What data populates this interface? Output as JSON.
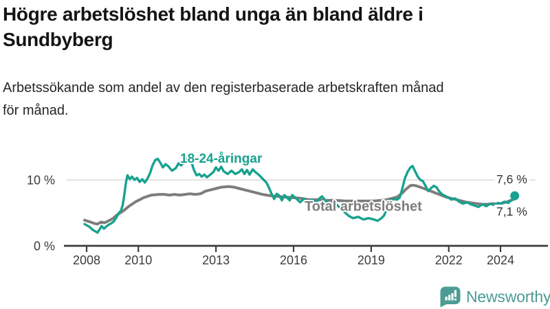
{
  "header": {
    "title_line1": "Högre arbetslöshet bland unga än bland äldre i",
    "title_line2": "Sundbyberg",
    "subtitle_line1": "Arbetssökande som andel av den registerbaserade arbetskraften månad",
    "subtitle_line2": "för månad."
  },
  "chart_data": {
    "type": "line",
    "unit": "percent of registered labour force",
    "x_axis": {
      "ticks": [
        2008,
        2010,
        2013,
        2016,
        2019,
        2022,
        2024
      ],
      "labels": [
        "2008",
        "2010",
        "2013",
        "2016",
        "2019",
        "2022",
        "2024"
      ],
      "range": [
        2007.9,
        2024.7
      ]
    },
    "y_axis": {
      "ticks": [
        {
          "value": 10,
          "label": "10 %"
        },
        {
          "value": 0,
          "label": "0 %"
        }
      ],
      "range": [
        0,
        14
      ],
      "gridline_value": 10
    },
    "series": [
      {
        "id": "young",
        "name": "18-24-åringar",
        "color": "#17a28e",
        "stroke_width": 3.4,
        "points": [
          [
            2007.92,
            3.3
          ],
          [
            2008.1,
            2.9
          ],
          [
            2008.25,
            2.4
          ],
          [
            2008.42,
            2.0
          ],
          [
            2008.5,
            2.5
          ],
          [
            2008.58,
            3.0
          ],
          [
            2008.67,
            2.6
          ],
          [
            2008.75,
            2.9
          ],
          [
            2008.85,
            3.2
          ],
          [
            2008.95,
            3.4
          ],
          [
            2009.05,
            3.7
          ],
          [
            2009.15,
            4.3
          ],
          [
            2009.25,
            5.0
          ],
          [
            2009.33,
            5.3
          ],
          [
            2009.4,
            6.3
          ],
          [
            2009.46,
            7.8
          ],
          [
            2009.52,
            9.6
          ],
          [
            2009.58,
            10.7
          ],
          [
            2009.67,
            10.1
          ],
          [
            2009.75,
            10.5
          ],
          [
            2009.85,
            10.0
          ],
          [
            2009.95,
            10.3
          ],
          [
            2010.05,
            9.7
          ],
          [
            2010.15,
            10.1
          ],
          [
            2010.25,
            9.6
          ],
          [
            2010.35,
            10.2
          ],
          [
            2010.45,
            11.0
          ],
          [
            2010.55,
            12.2
          ],
          [
            2010.65,
            13.0
          ],
          [
            2010.75,
            13.2
          ],
          [
            2010.85,
            12.6
          ],
          [
            2010.95,
            11.9
          ],
          [
            2011.05,
            12.4
          ],
          [
            2011.15,
            12.1
          ],
          [
            2011.3,
            11.4
          ],
          [
            2011.45,
            11.8
          ],
          [
            2011.55,
            12.5
          ],
          [
            2011.65,
            12.2
          ],
          [
            2011.8,
            12.8
          ],
          [
            2011.92,
            13.3
          ],
          [
            2012.05,
            12.7
          ],
          [
            2012.15,
            11.5
          ],
          [
            2012.25,
            10.7
          ],
          [
            2012.35,
            10.9
          ],
          [
            2012.45,
            10.5
          ],
          [
            2012.55,
            10.8
          ],
          [
            2012.65,
            10.4
          ],
          [
            2012.75,
            10.7
          ],
          [
            2012.9,
            11.2
          ],
          [
            2013.0,
            11.9
          ],
          [
            2013.1,
            11.4
          ],
          [
            2013.2,
            12.0
          ],
          [
            2013.3,
            11.3
          ],
          [
            2013.45,
            10.9
          ],
          [
            2013.6,
            11.4
          ],
          [
            2013.75,
            10.9
          ],
          [
            2013.9,
            11.2
          ],
          [
            2014.0,
            11.6
          ],
          [
            2014.1,
            10.9
          ],
          [
            2014.2,
            11.5
          ],
          [
            2014.3,
            10.8
          ],
          [
            2014.42,
            11.6
          ],
          [
            2014.52,
            11.2
          ],
          [
            2014.65,
            10.8
          ],
          [
            2014.8,
            10.2
          ],
          [
            2014.95,
            9.6
          ],
          [
            2015.05,
            8.8
          ],
          [
            2015.15,
            7.9
          ],
          [
            2015.25,
            7.1
          ],
          [
            2015.35,
            7.9
          ],
          [
            2015.45,
            7.6
          ],
          [
            2015.55,
            6.9
          ],
          [
            2015.65,
            7.7
          ],
          [
            2015.75,
            7.3
          ],
          [
            2015.85,
            6.9
          ],
          [
            2015.95,
            7.7
          ],
          [
            2016.1,
            7.2
          ],
          [
            2016.25,
            6.6
          ],
          [
            2016.4,
            7.1
          ],
          [
            2016.55,
            6.6
          ],
          [
            2016.7,
            7.0
          ],
          [
            2016.85,
            6.5
          ],
          [
            2017.0,
            7.2
          ],
          [
            2017.1,
            7.5
          ],
          [
            2017.25,
            6.8
          ],
          [
            2017.4,
            6.3
          ],
          [
            2017.55,
            6.7
          ],
          [
            2017.7,
            6.1
          ],
          [
            2017.85,
            5.6
          ],
          [
            2018.0,
            5.0
          ],
          [
            2018.15,
            4.5
          ],
          [
            2018.3,
            4.2
          ],
          [
            2018.5,
            4.4
          ],
          [
            2018.7,
            4.0
          ],
          [
            2018.9,
            4.2
          ],
          [
            2019.1,
            4.0
          ],
          [
            2019.25,
            3.8
          ],
          [
            2019.4,
            4.2
          ],
          [
            2019.5,
            4.6
          ],
          [
            2019.6,
            5.6
          ],
          [
            2019.7,
            6.4
          ],
          [
            2019.8,
            7.0
          ],
          [
            2019.9,
            7.1
          ],
          [
            2020.0,
            7.0
          ],
          [
            2020.1,
            7.3
          ],
          [
            2020.2,
            8.6
          ],
          [
            2020.3,
            10.2
          ],
          [
            2020.42,
            11.3
          ],
          [
            2020.52,
            11.9
          ],
          [
            2020.6,
            12.1
          ],
          [
            2020.7,
            11.3
          ],
          [
            2020.8,
            10.5
          ],
          [
            2020.9,
            10.0
          ],
          [
            2021.0,
            9.8
          ],
          [
            2021.1,
            9.1
          ],
          [
            2021.2,
            8.3
          ],
          [
            2021.3,
            8.7
          ],
          [
            2021.42,
            9.1
          ],
          [
            2021.52,
            8.9
          ],
          [
            2021.62,
            8.3
          ],
          [
            2021.75,
            7.8
          ],
          [
            2021.9,
            7.5
          ],
          [
            2022.0,
            7.3
          ],
          [
            2022.1,
            7.0
          ],
          [
            2022.25,
            7.2
          ],
          [
            2022.4,
            6.7
          ],
          [
            2022.55,
            6.4
          ],
          [
            2022.7,
            6.6
          ],
          [
            2022.85,
            6.3
          ],
          [
            2023.0,
            6.1
          ],
          [
            2023.15,
            5.9
          ],
          [
            2023.3,
            6.3
          ],
          [
            2023.45,
            6.0
          ],
          [
            2023.6,
            6.4
          ],
          [
            2023.75,
            6.2
          ],
          [
            2023.9,
            6.5
          ],
          [
            2024.0,
            6.4
          ],
          [
            2024.15,
            6.7
          ],
          [
            2024.3,
            6.5
          ],
          [
            2024.45,
            7.0
          ],
          [
            2024.55,
            7.6
          ]
        ]
      },
      {
        "id": "total",
        "name": "Total arbetslöshet",
        "color": "#7d7d7d",
        "stroke_width": 4,
        "points": [
          [
            2007.92,
            3.9
          ],
          [
            2008.15,
            3.6
          ],
          [
            2008.3,
            3.4
          ],
          [
            2008.42,
            3.3
          ],
          [
            2008.55,
            3.6
          ],
          [
            2008.7,
            3.5
          ],
          [
            2008.85,
            3.8
          ],
          [
            2009.0,
            4.1
          ],
          [
            2009.15,
            4.6
          ],
          [
            2009.3,
            5.0
          ],
          [
            2009.45,
            5.4
          ],
          [
            2009.6,
            5.9
          ],
          [
            2009.75,
            6.3
          ],
          [
            2009.9,
            6.7
          ],
          [
            2010.0,
            6.9
          ],
          [
            2010.2,
            7.3
          ],
          [
            2010.5,
            7.7
          ],
          [
            2010.8,
            7.8
          ],
          [
            2011.0,
            7.8
          ],
          [
            2011.2,
            7.7
          ],
          [
            2011.4,
            7.8
          ],
          [
            2011.6,
            7.7
          ],
          [
            2011.8,
            7.8
          ],
          [
            2012.0,
            7.9
          ],
          [
            2012.2,
            7.8
          ],
          [
            2012.4,
            7.9
          ],
          [
            2012.6,
            8.3
          ],
          [
            2012.8,
            8.5
          ],
          [
            2013.0,
            8.7
          ],
          [
            2013.2,
            8.9
          ],
          [
            2013.5,
            9.0
          ],
          [
            2013.7,
            8.9
          ],
          [
            2013.9,
            8.7
          ],
          [
            2014.1,
            8.5
          ],
          [
            2014.3,
            8.3
          ],
          [
            2014.6,
            8.0
          ],
          [
            2014.8,
            7.8
          ],
          [
            2015.1,
            7.6
          ],
          [
            2015.4,
            7.5
          ],
          [
            2015.7,
            7.4
          ],
          [
            2016.0,
            7.3
          ],
          [
            2016.3,
            7.2
          ],
          [
            2016.6,
            7.0
          ],
          [
            2016.9,
            7.0
          ],
          [
            2017.2,
            6.9
          ],
          [
            2017.6,
            6.9
          ],
          [
            2018.0,
            6.8
          ],
          [
            2018.4,
            6.8
          ],
          [
            2018.8,
            6.8
          ],
          [
            2019.1,
            6.8
          ],
          [
            2019.4,
            6.9
          ],
          [
            2019.6,
            7.0
          ],
          [
            2019.8,
            7.2
          ],
          [
            2020.0,
            7.4
          ],
          [
            2020.2,
            8.0
          ],
          [
            2020.35,
            8.6
          ],
          [
            2020.5,
            9.1
          ],
          [
            2020.6,
            9.2
          ],
          [
            2020.75,
            9.1
          ],
          [
            2020.9,
            8.9
          ],
          [
            2021.1,
            8.6
          ],
          [
            2021.3,
            8.3
          ],
          [
            2021.5,
            8.0
          ],
          [
            2021.7,
            7.7
          ],
          [
            2021.9,
            7.4
          ],
          [
            2022.1,
            7.2
          ],
          [
            2022.3,
            7.0
          ],
          [
            2022.5,
            6.8
          ],
          [
            2022.7,
            6.6
          ],
          [
            2022.9,
            6.5
          ],
          [
            2023.1,
            6.4
          ],
          [
            2023.3,
            6.3
          ],
          [
            2023.5,
            6.3
          ],
          [
            2023.7,
            6.4
          ],
          [
            2023.9,
            6.3
          ],
          [
            2024.0,
            6.4
          ],
          [
            2024.2,
            6.6
          ],
          [
            2024.4,
            6.9
          ],
          [
            2024.55,
            7.1
          ]
        ]
      }
    ],
    "end_dot": {
      "series": "young",
      "x": 2024.55,
      "value": 7.6
    },
    "end_labels": [
      {
        "series": "young",
        "text": "7,6 %"
      },
      {
        "series": "total",
        "text": "7,1 %"
      }
    ]
  },
  "branding": {
    "name": "Newsworthy",
    "icon": "newsworthy-bubble-bar-chart-icon",
    "color": "#4d9b95"
  },
  "style": {
    "accent_teal": "#17a28e",
    "line_gray": "#7d7d7d",
    "grid_color": "#d8d8d8",
    "axis_color": "#3c3c3c",
    "tick_label_color": "#3c3c3c",
    "title_color": "#141414"
  }
}
